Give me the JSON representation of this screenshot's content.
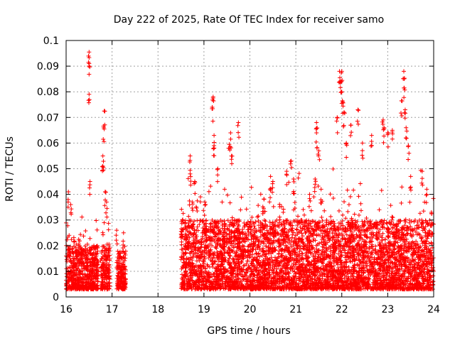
{
  "chart_data": {
    "type": "scatter",
    "title": "Day 222 of 2025, Rate Of TEC Index for receiver samo",
    "xlabel": "GPS time / hours",
    "ylabel": "ROTI / TECUs",
    "xlim": [
      16,
      24
    ],
    "ylim": [
      0,
      0.1
    ],
    "grid": true,
    "marker": "+",
    "color": "#ff0000",
    "x_ticks": [
      16,
      17,
      18,
      19,
      20,
      21,
      22,
      23,
      24
    ],
    "x_tick_labels": [
      "16",
      "17",
      "18",
      "19",
      "20",
      "21",
      "22",
      "23",
      "24"
    ],
    "y_ticks": [
      0,
      0.01,
      0.02,
      0.03,
      0.04,
      0.05,
      0.06,
      0.07,
      0.08,
      0.09,
      0.1
    ],
    "y_tick_labels": [
      "0",
      "0.01",
      "0.02",
      "0.03",
      "0.04",
      "0.05",
      "0.06",
      "0.07",
      "0.08",
      "0.09",
      "0.1"
    ],
    "series": [
      {
        "name": "ROTI",
        "segments": [
          {
            "x_start": 16.0,
            "x_end": 16.7,
            "typical_max": 0.02
          },
          {
            "x_start": 16.75,
            "x_end": 16.95,
            "typical_max": 0.02
          },
          {
            "x_start": 17.1,
            "x_end": 17.3,
            "typical_max": 0.018
          },
          {
            "x_start": 18.5,
            "x_end": 24.0,
            "typical_max": 0.03
          }
        ],
        "peaks": [
          {
            "x": 16.05,
            "y": 0.041
          },
          {
            "x": 16.1,
            "y": 0.036
          },
          {
            "x": 16.5,
            "y": 0.0955
          },
          {
            "x": 16.5,
            "y": 0.091
          },
          {
            "x": 16.5,
            "y": 0.079
          },
          {
            "x": 16.52,
            "y": 0.045
          },
          {
            "x": 16.83,
            "y": 0.0725
          },
          {
            "x": 16.82,
            "y": 0.066
          },
          {
            "x": 16.8,
            "y": 0.055
          },
          {
            "x": 16.8,
            "y": 0.051
          },
          {
            "x": 16.85,
            "y": 0.041
          },
          {
            "x": 16.88,
            "y": 0.037
          },
          {
            "x": 17.1,
            "y": 0.026
          },
          {
            "x": 17.25,
            "y": 0.025
          },
          {
            "x": 18.7,
            "y": 0.055
          },
          {
            "x": 18.7,
            "y": 0.048
          },
          {
            "x": 18.8,
            "y": 0.045
          },
          {
            "x": 18.75,
            "y": 0.037
          },
          {
            "x": 19.02,
            "y": 0.037
          },
          {
            "x": 19.2,
            "y": 0.078
          },
          {
            "x": 19.18,
            "y": 0.074
          },
          {
            "x": 19.22,
            "y": 0.063
          },
          {
            "x": 19.22,
            "y": 0.059
          },
          {
            "x": 19.3,
            "y": 0.05
          },
          {
            "x": 19.55,
            "y": 0.0595
          },
          {
            "x": 19.58,
            "y": 0.064
          },
          {
            "x": 19.6,
            "y": 0.055
          },
          {
            "x": 19.75,
            "y": 0.068
          },
          {
            "x": 20.45,
            "y": 0.047
          },
          {
            "x": 20.5,
            "y": 0.045
          },
          {
            "x": 20.8,
            "y": 0.049
          },
          {
            "x": 20.9,
            "y": 0.053
          },
          {
            "x": 20.95,
            "y": 0.046
          },
          {
            "x": 21.3,
            "y": 0.04
          },
          {
            "x": 21.45,
            "y": 0.068
          },
          {
            "x": 21.45,
            "y": 0.064
          },
          {
            "x": 21.5,
            "y": 0.057
          },
          {
            "x": 21.42,
            "y": 0.046
          },
          {
            "x": 21.55,
            "y": 0.042
          },
          {
            "x": 21.9,
            "y": 0.07
          },
          {
            "x": 21.95,
            "y": 0.088
          },
          {
            "x": 22.0,
            "y": 0.088
          },
          {
            "x": 21.98,
            "y": 0.084
          },
          {
            "x": 22.0,
            "y": 0.08
          },
          {
            "x": 22.02,
            "y": 0.076
          },
          {
            "x": 22.05,
            "y": 0.072
          },
          {
            "x": 22.1,
            "y": 0.06
          },
          {
            "x": 22.2,
            "y": 0.067
          },
          {
            "x": 22.35,
            "y": 0.073
          },
          {
            "x": 22.45,
            "y": 0.06
          },
          {
            "x": 22.65,
            "y": 0.063
          },
          {
            "x": 22.9,
            "y": 0.069
          },
          {
            "x": 22.92,
            "y": 0.066
          },
          {
            "x": 23.0,
            "y": 0.064
          },
          {
            "x": 23.1,
            "y": 0.065
          },
          {
            "x": 23.3,
            "y": 0.0765
          },
          {
            "x": 23.35,
            "y": 0.088
          },
          {
            "x": 23.36,
            "y": 0.0815
          },
          {
            "x": 23.38,
            "y": 0.073
          },
          {
            "x": 23.4,
            "y": 0.066
          },
          {
            "x": 23.45,
            "y": 0.059
          },
          {
            "x": 23.5,
            "y": 0.047
          },
          {
            "x": 23.75,
            "y": 0.049
          },
          {
            "x": 23.85,
            "y": 0.042
          },
          {
            "x": 23.95,
            "y": 0.033
          }
        ]
      }
    ]
  }
}
